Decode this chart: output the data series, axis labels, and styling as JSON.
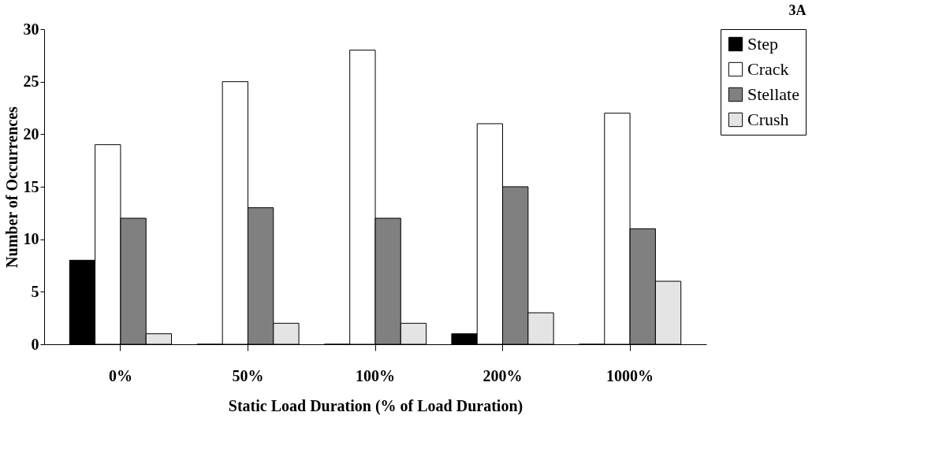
{
  "chart_data": {
    "type": "bar",
    "title": "3A",
    "xlabel": "Static Load Duration (%  of Load Duration)",
    "ylabel": "Number of Occurrences",
    "categories": [
      "0%",
      "50%",
      "100%",
      "200%",
      "1000%"
    ],
    "series": [
      {
        "name": "Step",
        "color": "#000000",
        "values": [
          8,
          0,
          0,
          1,
          0
        ]
      },
      {
        "name": "Crack",
        "color": "#ffffff",
        "values": [
          19,
          25,
          28,
          21,
          22
        ]
      },
      {
        "name": "Stellate",
        "color": "#808080",
        "values": [
          12,
          13,
          12,
          15,
          11
        ]
      },
      {
        "name": "Crush",
        "color": "#e4e4e4",
        "values": [
          1,
          2,
          2,
          3,
          6
        ]
      }
    ],
    "ylim": [
      0,
      30
    ],
    "yticks": [
      0,
      5,
      10,
      15,
      20,
      25,
      30
    ],
    "grid": false,
    "legend": "right"
  }
}
